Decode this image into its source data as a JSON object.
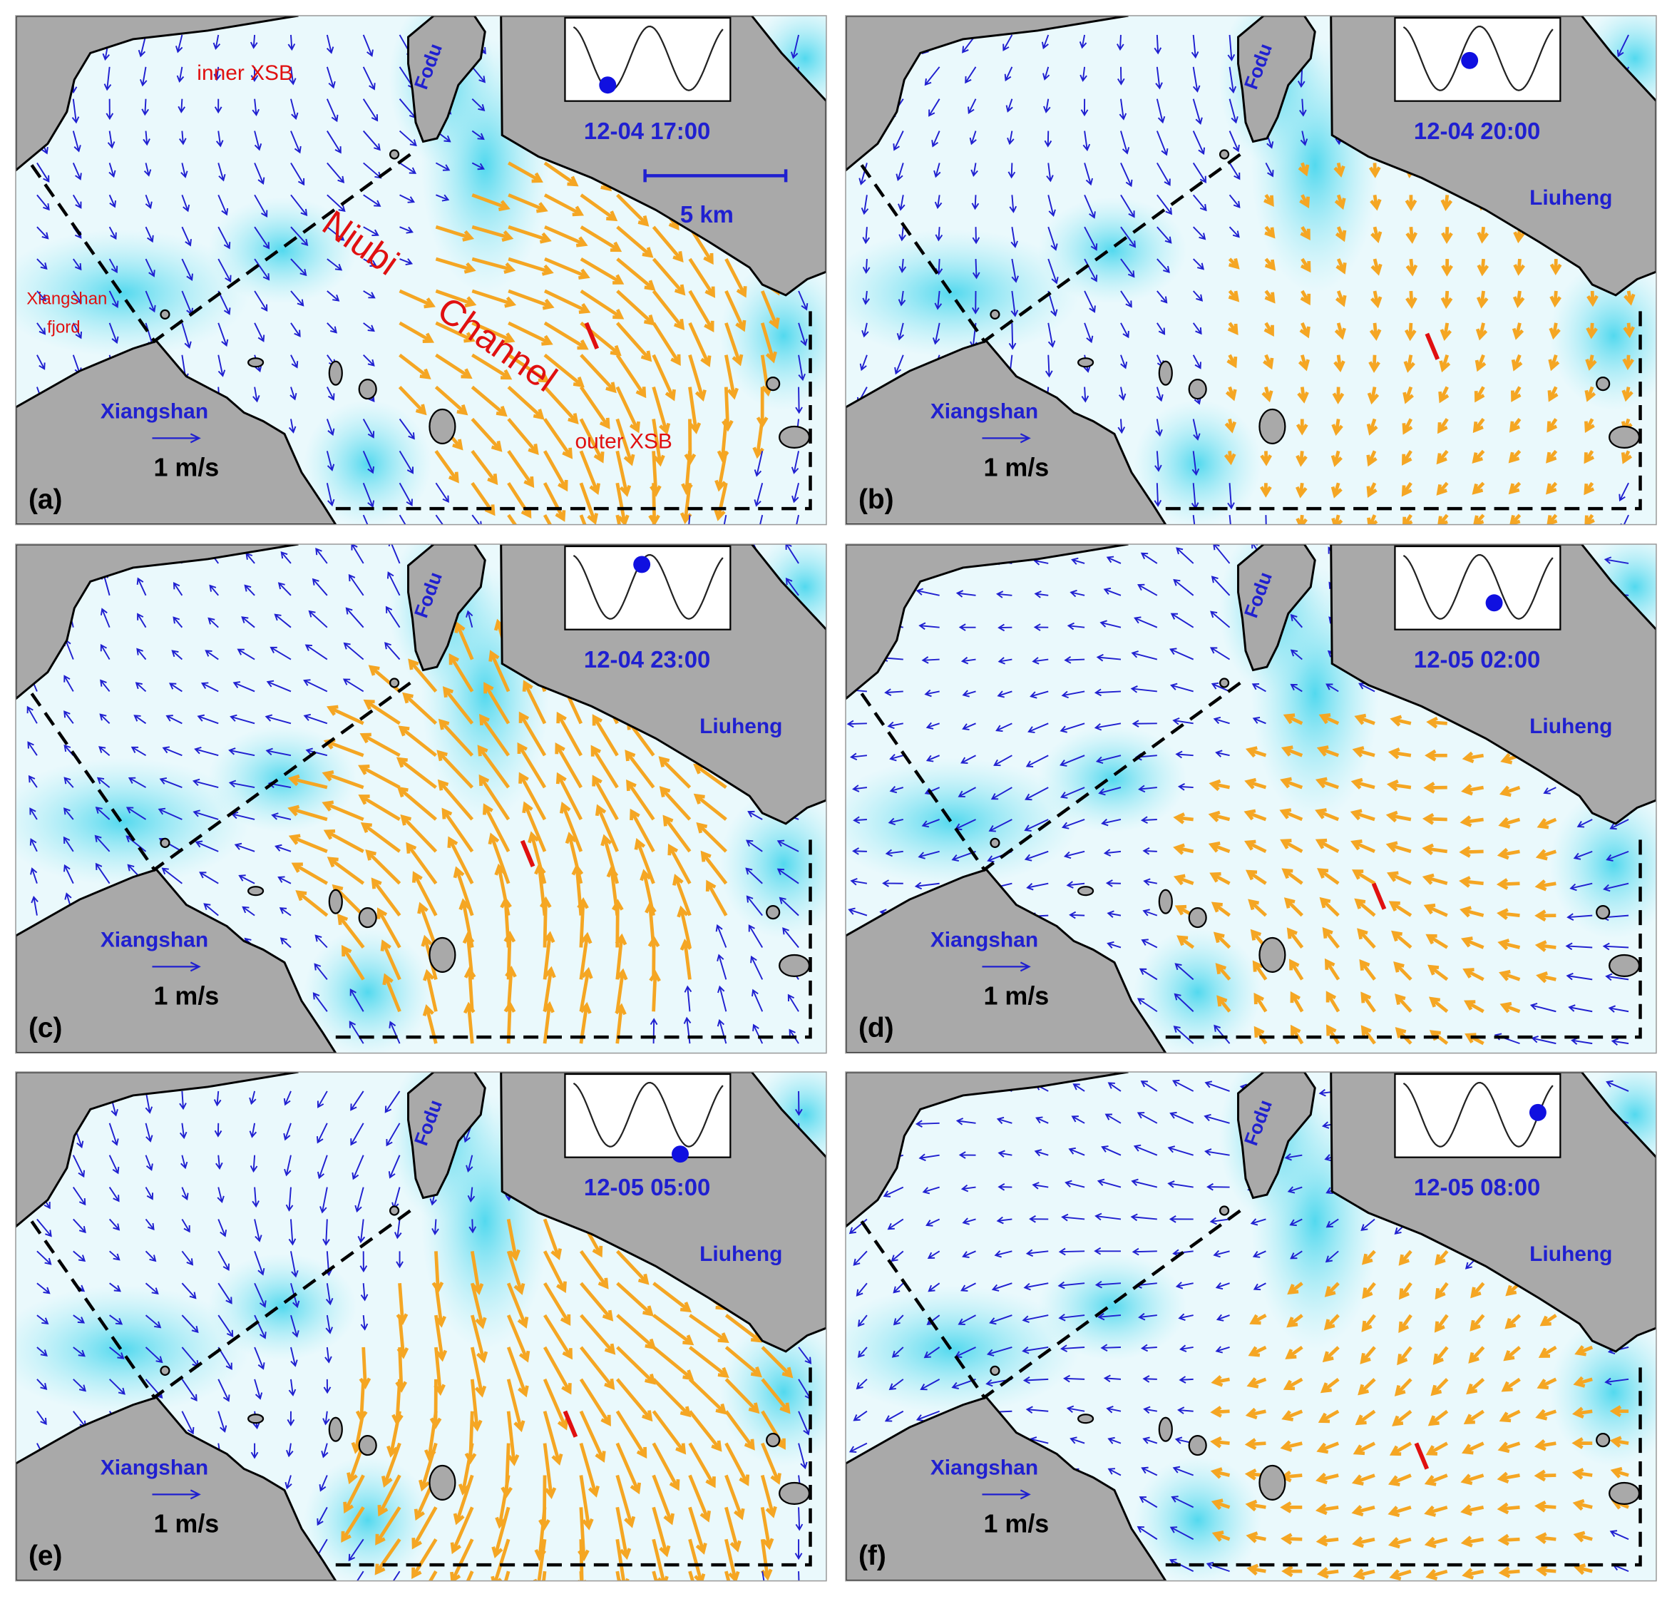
{
  "panels": [
    {
      "label": "(a)",
      "time": "12-04 17:00",
      "scale": "1 m/s",
      "places": [
        "Fodu",
        "Xiangshan"
      ],
      "annotations": [
        "inner XSB",
        "Xiangshan",
        "fjord",
        "Niubi",
        "Channel",
        "outer XSB",
        "5 km"
      ]
    },
    {
      "label": "(b)",
      "time": "12-04 20:00",
      "scale": "1 m/s",
      "places": [
        "Fodu",
        "Xiangshan",
        "Liuheng"
      ]
    },
    {
      "label": "(c)",
      "time": "12-04 23:00",
      "scale": "1 m/s",
      "places": [
        "Fodu",
        "Xiangshan",
        "Liuheng"
      ]
    },
    {
      "label": "(d)",
      "time": "12-05 02:00",
      "scale": "1 m/s",
      "places": [
        "Fodu",
        "Xiangshan",
        "Liuheng"
      ]
    },
    {
      "label": "(e)",
      "time": "12-05 05:00",
      "scale": "1 m/s",
      "places": [
        "Fodu",
        "Xiangshan",
        "Liuheng"
      ]
    },
    {
      "label": "(f)",
      "time": "12-05 08:00",
      "scale": "1 m/s",
      "places": [
        "Fodu",
        "Xiangshan",
        "Liuheng"
      ]
    }
  ]
}
